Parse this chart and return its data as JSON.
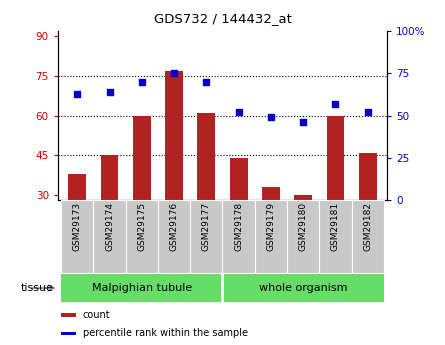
{
  "title": "GDS732 / 144432_at",
  "samples": [
    "GSM29173",
    "GSM29174",
    "GSM29175",
    "GSM29176",
    "GSM29177",
    "GSM29178",
    "GSM29179",
    "GSM29180",
    "GSM29181",
    "GSM29182"
  ],
  "counts": [
    38,
    45,
    60,
    77,
    61,
    44,
    33,
    30,
    60,
    46
  ],
  "percentiles": [
    63,
    64,
    70,
    75,
    70,
    52,
    49,
    46,
    57,
    52
  ],
  "ylim_left": [
    28,
    92
  ],
  "ylim_right": [
    0,
    100
  ],
  "yticks_left": [
    30,
    45,
    60,
    75,
    90
  ],
  "yticks_right": [
    0,
    25,
    50,
    75,
    100
  ],
  "ytick_labels_right": [
    "0",
    "25",
    "50",
    "75",
    "100%"
  ],
  "hlines": [
    45,
    60,
    75
  ],
  "bar_color": "#b22222",
  "scatter_color": "#0000cc",
  "left_tick_color": "#cc0000",
  "right_tick_color": "#0000cc",
  "malp_samples": 5,
  "whole_samples": 5,
  "legend_items": [
    {
      "label": "count",
      "color": "#b22222"
    },
    {
      "label": "percentile rank within the sample",
      "color": "#0000cc"
    }
  ],
  "tissue_label": "tissue",
  "tissue_green": "#66dd66",
  "xtick_bg": "#c8c8c8"
}
